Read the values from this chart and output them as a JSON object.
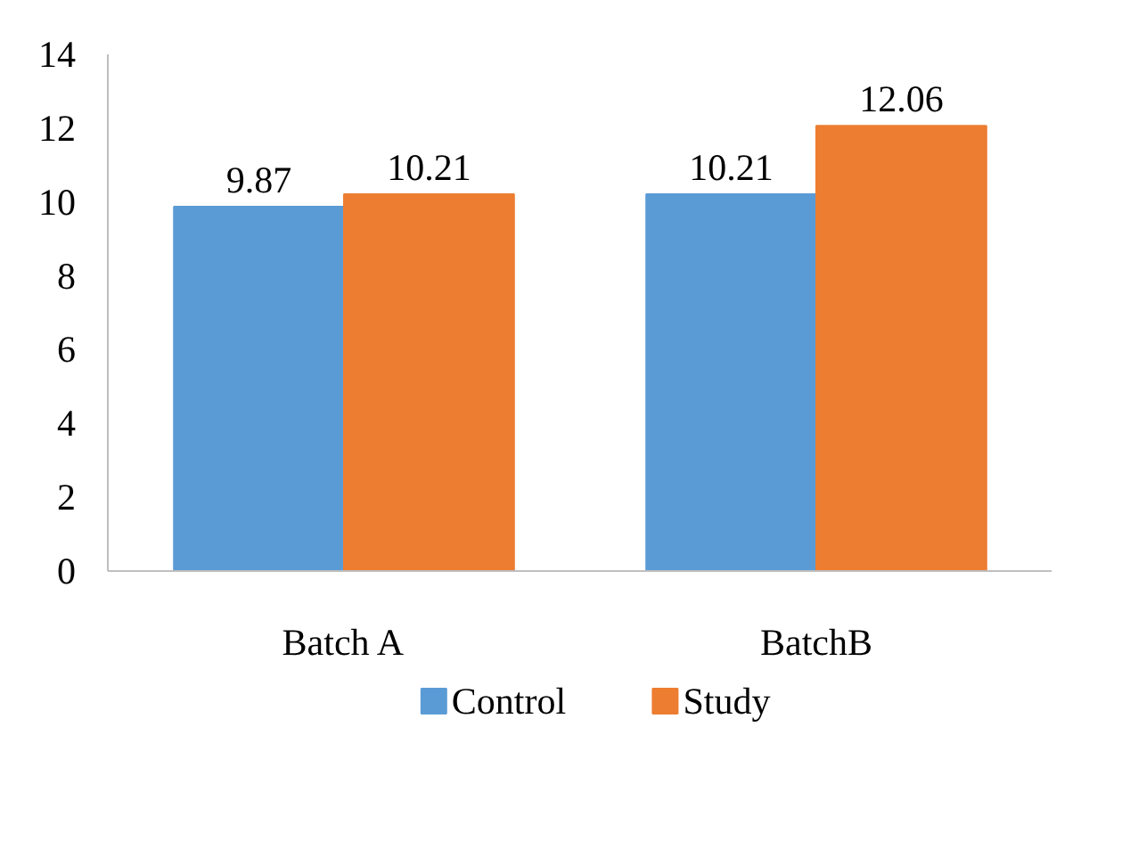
{
  "chart_data": {
    "type": "bar",
    "categories": [
      "Batch A",
      "BatchB"
    ],
    "series": [
      {
        "name": "Control",
        "color": "#5b9bd5",
        "values": [
          9.87,
          10.21
        ]
      },
      {
        "name": "Study",
        "color": "#ed7d31",
        "values": [
          10.21,
          12.06
        ]
      }
    ],
    "ylim": [
      0,
      14
    ],
    "yticks": [
      0,
      2,
      4,
      6,
      8,
      10,
      12,
      14
    ],
    "data_labels": true,
    "grid": false,
    "legend": "bottom"
  }
}
